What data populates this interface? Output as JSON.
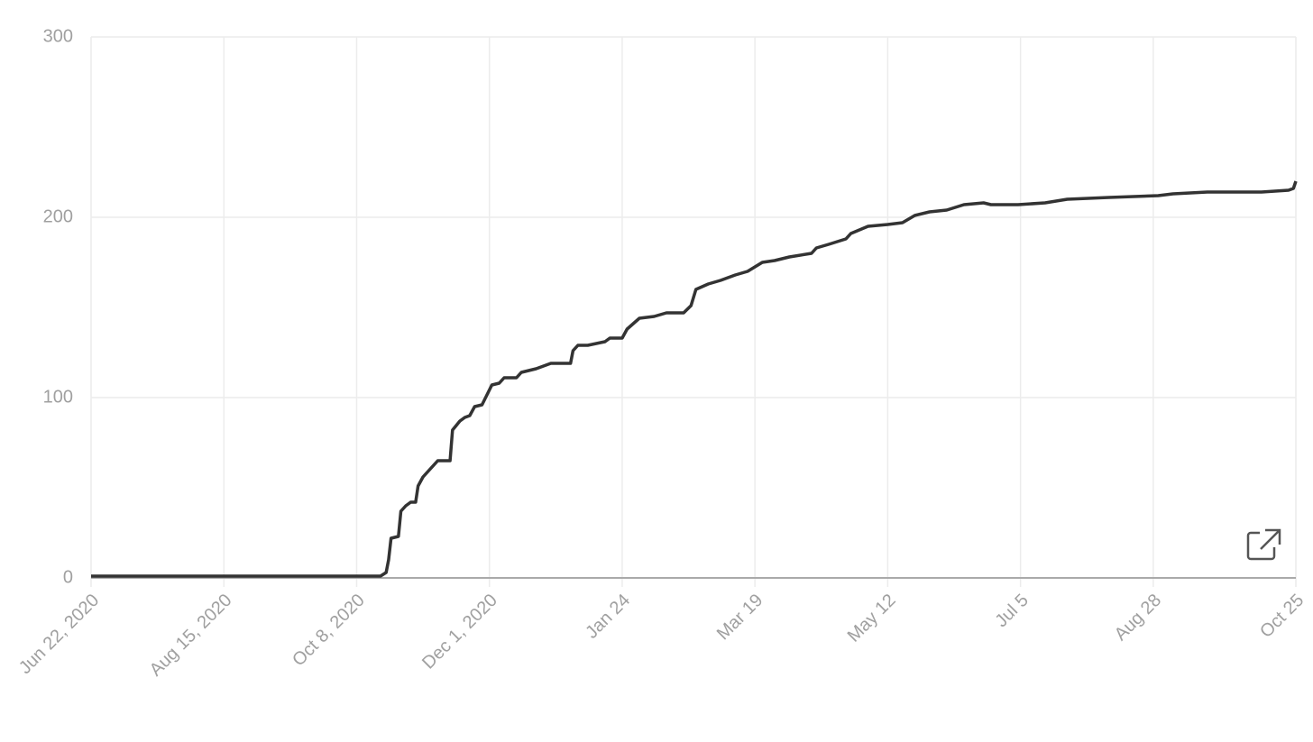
{
  "chart_data": {
    "type": "line",
    "x": [
      0,
      117.7,
      120,
      121,
      122,
      125,
      126,
      128,
      130,
      132,
      133,
      135,
      141,
      144,
      146,
      147,
      150,
      152,
      154,
      156,
      159,
      163,
      166,
      168,
      173,
      175,
      181,
      187,
      195,
      196,
      198,
      202,
      209,
      211,
      216,
      218,
      223,
      229,
      234,
      241,
      244,
      246,
      251,
      256,
      262,
      267,
      273,
      278,
      284,
      293,
      295,
      300,
      307,
      309,
      316,
      324,
      330,
      335,
      341,
      348,
      355,
      363,
      366,
      377,
      388,
      397,
      414,
      434,
      440,
      454,
      476,
      487,
      489,
      490
    ],
    "series": [
      {
        "color": "#333333",
        "values": [
          1,
          1,
          3,
          10,
          22,
          23,
          37,
          40,
          42,
          42,
          51,
          56,
          65,
          65,
          65,
          82,
          87,
          89,
          90,
          95,
          96,
          107,
          108,
          111,
          111,
          114,
          116,
          119,
          119,
          126,
          129,
          129,
          131,
          133,
          133,
          138,
          144,
          145,
          147,
          147,
          151,
          160,
          163,
          165,
          168,
          170,
          175,
          176,
          178,
          180,
          183,
          185,
          188,
          191,
          195,
          196,
          197,
          201,
          203,
          204,
          207,
          208,
          207,
          207,
          208,
          210,
          211,
          212,
          213,
          214,
          214,
          215,
          216,
          220
        ]
      }
    ],
    "xlim": [
      0,
      490
    ],
    "xticks": [
      {
        "value": 0,
        "label": "Jun 22, 2020"
      },
      {
        "value": 54,
        "label": "Aug 15, 2020"
      },
      {
        "value": 108,
        "label": "Oct 8, 2020"
      },
      {
        "value": 162,
        "label": "Dec 1, 2020"
      },
      {
        "value": 216,
        "label": "Jan 24"
      },
      {
        "value": 270,
        "label": "Mar 19"
      },
      {
        "value": 324,
        "label": "May 12"
      },
      {
        "value": 378,
        "label": "Jul 5"
      },
      {
        "value": 432,
        "label": "Aug 28"
      },
      {
        "value": 490,
        "label": "Oct 25"
      }
    ],
    "ylim": [
      0,
      300
    ],
    "yticks": [
      0,
      100,
      200,
      300
    ],
    "grid": true
  }
}
